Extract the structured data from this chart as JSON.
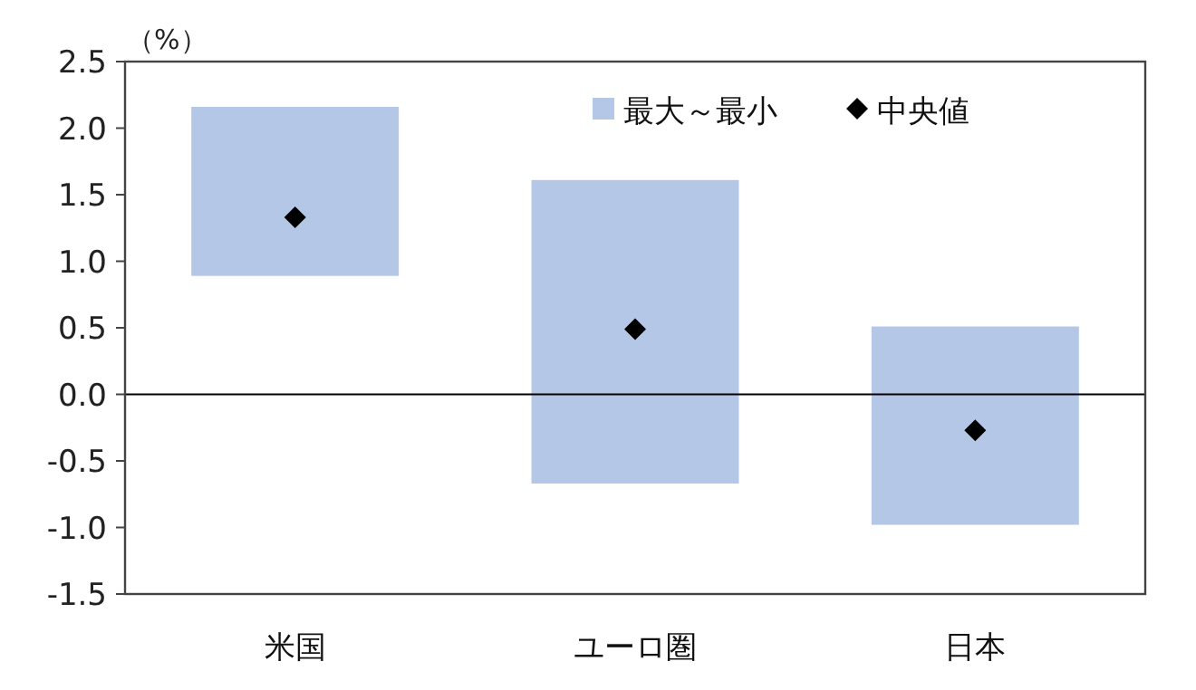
{
  "chart_data": {
    "type": "bar",
    "ylabel": "（%）",
    "categories": [
      "米国",
      "ユーロ圏",
      "日本"
    ],
    "series": [
      {
        "name": "最大～最小",
        "color": "#b4c7e7",
        "base": [
          0.89,
          -0.67,
          -0.98
        ],
        "values": [
          1.27,
          2.28,
          1.49
        ]
      },
      {
        "type": "scatter",
        "name": "中央値",
        "color": "#000000",
        "marker": "diamond",
        "x": [
          "米国",
          "ユーロ圏",
          "日本"
        ],
        "values": [
          1.33,
          0.49,
          -0.27
        ]
      }
    ],
    "ylim": [
      -1.5,
      2.5
    ],
    "yticks": [
      2.5,
      {
        "value": 2,
        "label": "2.0"
      },
      1.5,
      {
        "value": 1,
        "label": "1.0"
      },
      0.5,
      {
        "value": 0,
        "label": "0.0"
      },
      -0.5,
      {
        "value": -1,
        "label": "-1.0"
      },
      -1.5
    ],
    "ref_lines": [
      {
        "axis": "y",
        "value": 0,
        "color": "#000000"
      }
    ],
    "grid": false,
    "legend": "top right"
  }
}
